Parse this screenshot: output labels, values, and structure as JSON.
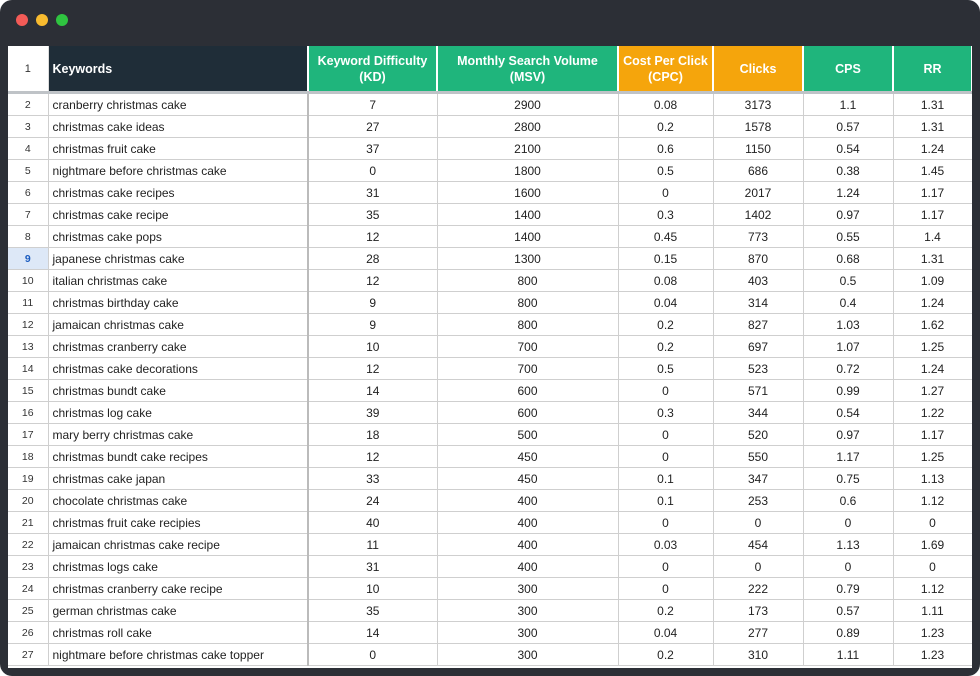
{
  "header": {
    "num": 1,
    "columns": [
      [
        "Keywords"
      ],
      [
        "Keyword Difficulty",
        "(KD)"
      ],
      [
        "Monthly Search Volume",
        "(MSV)"
      ],
      [
        "Cost Per Click",
        "(CPC)"
      ],
      [
        "Clicks"
      ],
      [
        "CPS"
      ],
      [
        "RR"
      ]
    ]
  },
  "selected_row": 9,
  "rows": [
    {
      "num": 2,
      "cells": [
        "cranberry christmas cake",
        7,
        2900,
        0.08,
        3173,
        1.1,
        1.31
      ]
    },
    {
      "num": 3,
      "cells": [
        "christmas cake ideas",
        27,
        2800,
        0.2,
        1578,
        0.57,
        1.31
      ]
    },
    {
      "num": 4,
      "cells": [
        "christmas fruit cake",
        37,
        2100,
        0.6,
        1150,
        0.54,
        1.24
      ]
    },
    {
      "num": 5,
      "cells": [
        "nightmare before christmas cake",
        0,
        1800,
        0.5,
        686,
        0.38,
        1.45
      ]
    },
    {
      "num": 6,
      "cells": [
        "christmas cake recipes",
        31,
        1600,
        0,
        2017,
        1.24,
        1.17
      ]
    },
    {
      "num": 7,
      "cells": [
        "christmas cake recipe",
        35,
        1400,
        0.3,
        1402,
        0.97,
        1.17
      ]
    },
    {
      "num": 8,
      "cells": [
        "christmas cake pops",
        12,
        1400,
        0.45,
        773,
        0.55,
        1.4
      ]
    },
    {
      "num": 9,
      "cells": [
        "japanese christmas cake",
        28,
        1300,
        0.15,
        870,
        0.68,
        1.31
      ]
    },
    {
      "num": 10,
      "cells": [
        "italian christmas cake",
        12,
        800,
        0.08,
        403,
        0.5,
        1.09
      ]
    },
    {
      "num": 11,
      "cells": [
        "christmas birthday cake",
        9,
        800,
        0.04,
        314,
        0.4,
        1.24
      ]
    },
    {
      "num": 12,
      "cells": [
        "jamaican christmas cake",
        9,
        800,
        0.2,
        827,
        1.03,
        1.62
      ]
    },
    {
      "num": 13,
      "cells": [
        "christmas cranberry cake",
        10,
        700,
        0.2,
        697,
        1.07,
        1.25
      ]
    },
    {
      "num": 14,
      "cells": [
        "christmas cake decorations",
        12,
        700,
        0.5,
        523,
        0.72,
        1.24
      ]
    },
    {
      "num": 15,
      "cells": [
        "christmas bundt cake",
        14,
        600,
        0,
        571,
        0.99,
        1.27
      ]
    },
    {
      "num": 16,
      "cells": [
        "christmas log cake",
        39,
        600,
        0.3,
        344,
        0.54,
        1.22
      ]
    },
    {
      "num": 17,
      "cells": [
        "mary berry christmas cake",
        18,
        500,
        0,
        520,
        0.97,
        1.17
      ]
    },
    {
      "num": 18,
      "cells": [
        "christmas bundt cake recipes",
        12,
        450,
        0,
        550,
        1.17,
        1.25
      ]
    },
    {
      "num": 19,
      "cells": [
        "christmas cake japan",
        33,
        450,
        0.1,
        347,
        0.75,
        1.13
      ]
    },
    {
      "num": 20,
      "cells": [
        "chocolate christmas cake",
        24,
        400,
        0.1,
        253,
        0.6,
        1.12
      ]
    },
    {
      "num": 21,
      "cells": [
        "christmas fruit cake recipies",
        40,
        400,
        0,
        0,
        0,
        0
      ]
    },
    {
      "num": 22,
      "cells": [
        "jamaican christmas cake recipe",
        11,
        400,
        0.03,
        454,
        1.13,
        1.69
      ]
    },
    {
      "num": 23,
      "cells": [
        "christmas logs cake",
        31,
        400,
        0,
        0,
        0,
        0
      ]
    },
    {
      "num": 24,
      "cells": [
        "christmas cranberry cake recipe",
        10,
        300,
        0,
        222,
        0.79,
        1.12
      ]
    },
    {
      "num": 25,
      "cells": [
        "german christmas cake",
        35,
        300,
        0.2,
        173,
        0.57,
        1.11
      ]
    },
    {
      "num": 26,
      "cells": [
        "christmas roll cake",
        14,
        300,
        0.04,
        277,
        0.89,
        1.23
      ]
    },
    {
      "num": 27,
      "cells": [
        "nightmare before christmas cake topper",
        0,
        300,
        0.2,
        310,
        1.11,
        1.23
      ]
    }
  ]
}
